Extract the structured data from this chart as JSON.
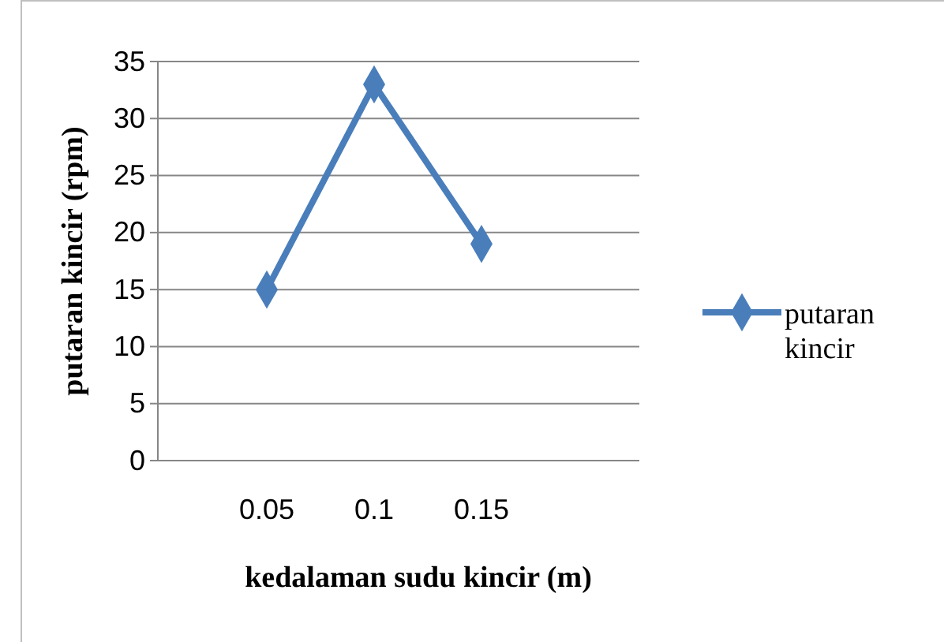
{
  "chart_data": {
    "type": "line",
    "xlabel": "kedalaman sudu kincir (m)",
    "ylabel": "putaran kincir (rpm)",
    "categories": [
      "0.05",
      "0.1",
      "0.15"
    ],
    "series": [
      {
        "name": "putaran kincir",
        "color": "#4a7ebb",
        "values": [
          15,
          33,
          19
        ]
      }
    ],
    "ylim": [
      0,
      35
    ],
    "yticks": [
      0,
      5,
      10,
      15,
      20,
      25,
      30,
      35
    ],
    "grid": "y",
    "legend": "right",
    "marker": "diamond",
    "line_style": "solid"
  }
}
